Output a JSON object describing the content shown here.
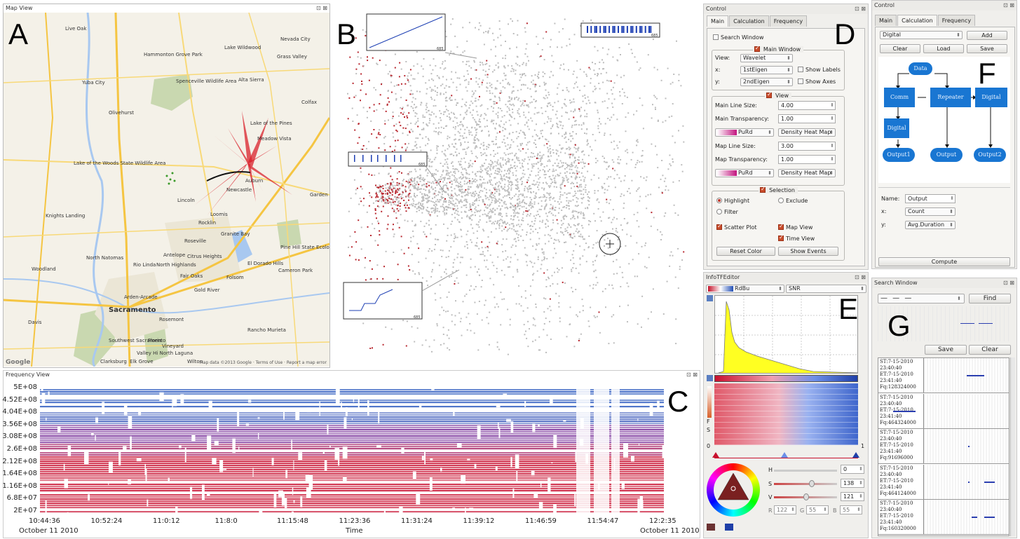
{
  "labels": {
    "a": "A",
    "b": "B",
    "c": "C",
    "d": "D",
    "e": "E",
    "f": "F",
    "g": "G"
  },
  "map": {
    "title": "Map View",
    "places": [
      {
        "name": "Live Oak",
        "n": "live-oak"
      },
      {
        "name": "Lake Wildwood",
        "n": "lake-wildwood"
      },
      {
        "name": "Nevada City",
        "n": "nevada-city"
      },
      {
        "name": "Grass Valley",
        "n": "grass-valley"
      },
      {
        "name": "Yuba City",
        "n": "yuba-city"
      },
      {
        "name": "Alta Sierra",
        "n": "alta-sierra"
      },
      {
        "name": "Colfax",
        "n": "colfax"
      },
      {
        "name": "Lake of the Pines",
        "n": "lake-of-the-pines"
      },
      {
        "name": "Meadow Vista",
        "n": "meadow-vista"
      },
      {
        "name": "Lincoln",
        "n": "lincoln"
      },
      {
        "name": "Newcastle",
        "n": "newcastle"
      },
      {
        "name": "Auburn",
        "n": "auburn"
      },
      {
        "name": "Garden Valley",
        "n": "garden-valley"
      },
      {
        "name": "Knights Landing",
        "n": "knights-landing"
      },
      {
        "name": "Roseville",
        "n": "roseville"
      },
      {
        "name": "Granite Bay",
        "n": "granite-bay"
      },
      {
        "name": "Rocklin",
        "n": "rocklin"
      },
      {
        "name": "Loomis",
        "n": "loomis"
      },
      {
        "name": "North Natomas",
        "n": "north-natomas"
      },
      {
        "name": "Antelope",
        "n": "antelope"
      },
      {
        "name": "Citrus Heights",
        "n": "citrus-heights"
      },
      {
        "name": "North Highlands",
        "n": "north-highlands"
      },
      {
        "name": "Woodland",
        "n": "woodland"
      },
      {
        "name": "Rio Linda",
        "n": "rio-linda"
      },
      {
        "name": "Fair Oaks",
        "n": "fair-oaks"
      },
      {
        "name": "Folsom",
        "n": "folsom"
      },
      {
        "name": "El Dorado Hills",
        "n": "el-dorado-hills"
      },
      {
        "name": "Cameron Park",
        "n": "cameron-park"
      },
      {
        "name": "Gold River",
        "n": "gold-river"
      },
      {
        "name": "Arden-Arcade",
        "n": "arden-arcade"
      },
      {
        "name": "Sacramento",
        "n": "sacramento"
      },
      {
        "name": "Davis",
        "n": "davis"
      },
      {
        "name": "Rosemont",
        "n": "rosemont"
      },
      {
        "name": "Southwest Sacramento",
        "n": "southwest-sacramento"
      },
      {
        "name": "Florin",
        "n": "florin"
      },
      {
        "name": "Vineyard",
        "n": "vineyard"
      },
      {
        "name": "Clarksburg",
        "n": "clarksburg"
      },
      {
        "name": "Wilton",
        "n": "wilton"
      },
      {
        "name": "Elk Grove",
        "n": "elk-grove"
      },
      {
        "name": "Rancho Murieta",
        "n": "rancho-murieta"
      },
      {
        "name": "Spenceville Wildlife Area",
        "n": "spenceville"
      },
      {
        "name": "Lake of the Woods State Wildlife Area",
        "n": "lake-of-the-woods"
      },
      {
        "name": "Pine Hill State Ecological Reserve",
        "n": "pine-hill"
      },
      {
        "name": "Hammonton Grove Park",
        "n": "hammonton"
      },
      {
        "name": "Olivehurst",
        "n": "olivehurst"
      },
      {
        "name": "Valley Hi North Laguna",
        "n": "valley-hi"
      }
    ],
    "attribution": "Map data ©2013 Google · Terms of Use · Report a map error",
    "logo": "Google"
  },
  "scatter": {
    "thumb_count": "685"
  },
  "frequency": {
    "title": "Frequency View",
    "yticks": [
      "5E+08",
      "4.52E+08",
      "4.04E+08",
      "3.56E+08",
      "3.08E+08",
      "2.6E+08",
      "2.12E+08",
      "1.64E+08",
      "1.16E+08",
      "6.8E+07",
      "2E+07"
    ],
    "xticks": [
      "10:44:36",
      "10:52:24",
      "11:0:12",
      "11:8:0",
      "11:15:48",
      "11:23:36",
      "11:31:24",
      "11:39:12",
      "11:46:59",
      "11:54:47",
      "12:2:35"
    ],
    "date_left": "October 11 2010",
    "date_right": "October 11 2010",
    "xlabel": "Time"
  },
  "control_d": {
    "title": "Control",
    "tabs": [
      "Main",
      "Calculation",
      "Frequency"
    ],
    "search_window": "Search Window",
    "main_window": "Main Window",
    "view_label": "View:",
    "view_value": "Wavelet",
    "x_label": "x:",
    "x_value": "1stEigen",
    "y_label": "y:",
    "y_value": "2ndEigen",
    "show_labels": "Show Labels",
    "show_axes": "Show Axes",
    "view_group": "View",
    "main_line_size_label": "Main Line Size:",
    "main_line_size": "4.00",
    "main_transparency_label": "Main Transparency:",
    "main_transparency": "1.00",
    "colormap1": "PuRd",
    "heatmap1": "Density Heat Map",
    "map_line_size_label": "Map Line Size:",
    "map_line_size": "3.00",
    "map_transparency_label": "Map Transparency:",
    "map_transparency": "1.00",
    "colormap2": "PuRd",
    "heatmap2": "Density Heat Map",
    "selection_group": "Selection",
    "highlight": "Highlight",
    "exclude": "Exclude",
    "filter": "Filter",
    "scatter_plot": "Scatter Plot",
    "map_view": "Map View",
    "time_view": "Time View",
    "reset_color": "Reset Color",
    "show_events": "Show Events"
  },
  "infotf": {
    "title": "InfoTFEditor",
    "colormap": "RdBu",
    "metric": "SNR",
    "axis_left": "0",
    "axis_right": "1",
    "side_f": "F",
    "side_s": "S",
    "h_label": "H",
    "h_value": "0",
    "s_label": "S",
    "s_value": "138",
    "v_label": "V",
    "v_value": "121",
    "r_label": "R",
    "r_value": "122",
    "g_label": "G",
    "g_value": "55",
    "b_label": "B",
    "b_value": "55"
  },
  "control_f": {
    "title": "Control",
    "tabs": [
      "Main",
      "Calculation",
      "Frequency"
    ],
    "type_value": "Digital",
    "add": "Add",
    "clear": "Clear",
    "load": "Load",
    "save": "Save",
    "nodes": {
      "data": "Data",
      "comm": "Comm",
      "repeater": "Repeater",
      "digital1": "Digital",
      "digital2": "Digital",
      "output1": "Output1",
      "output": "Output",
      "output2": "Output2"
    },
    "name_label": "Name:",
    "name_value": "Output",
    "x_label": "x:",
    "x_value": "Count",
    "y_label": "y:",
    "y_value": "Avg.Duration",
    "compute": "Compute"
  },
  "search": {
    "title": "Search Window",
    "pattern": "— — —",
    "find": "Find",
    "save": "Save",
    "clear": "Clear",
    "results": [
      {
        "st": "ST:7-15-2010",
        "t1": "23:40:40",
        "et": "ET:7-15-2010",
        "t2": "23:41:40",
        "fq": "Fq:128324000"
      },
      {
        "st": "ST:7-15-2010",
        "t1": "23:40:40",
        "et": "ET:7-15-2010",
        "t2": "23:41:40",
        "fq": "Fq:464324000"
      },
      {
        "st": "ST:7-15-2010",
        "t1": "23:40:40",
        "et": "ET:7-15-2010",
        "t2": "23:41:40",
        "fq": "Fq:91696000"
      },
      {
        "st": "ST:7-15-2010",
        "t1": "23:40:40",
        "et": "ET:7-15-2010",
        "t2": "23:41:40",
        "fq": "Fq:464124000"
      },
      {
        "st": "ST:7-15-2010",
        "t1": "23:40:40",
        "et": "ET:7-15-2010",
        "t2": "23:41:40",
        "fq": "Fq:160320000"
      }
    ]
  }
}
